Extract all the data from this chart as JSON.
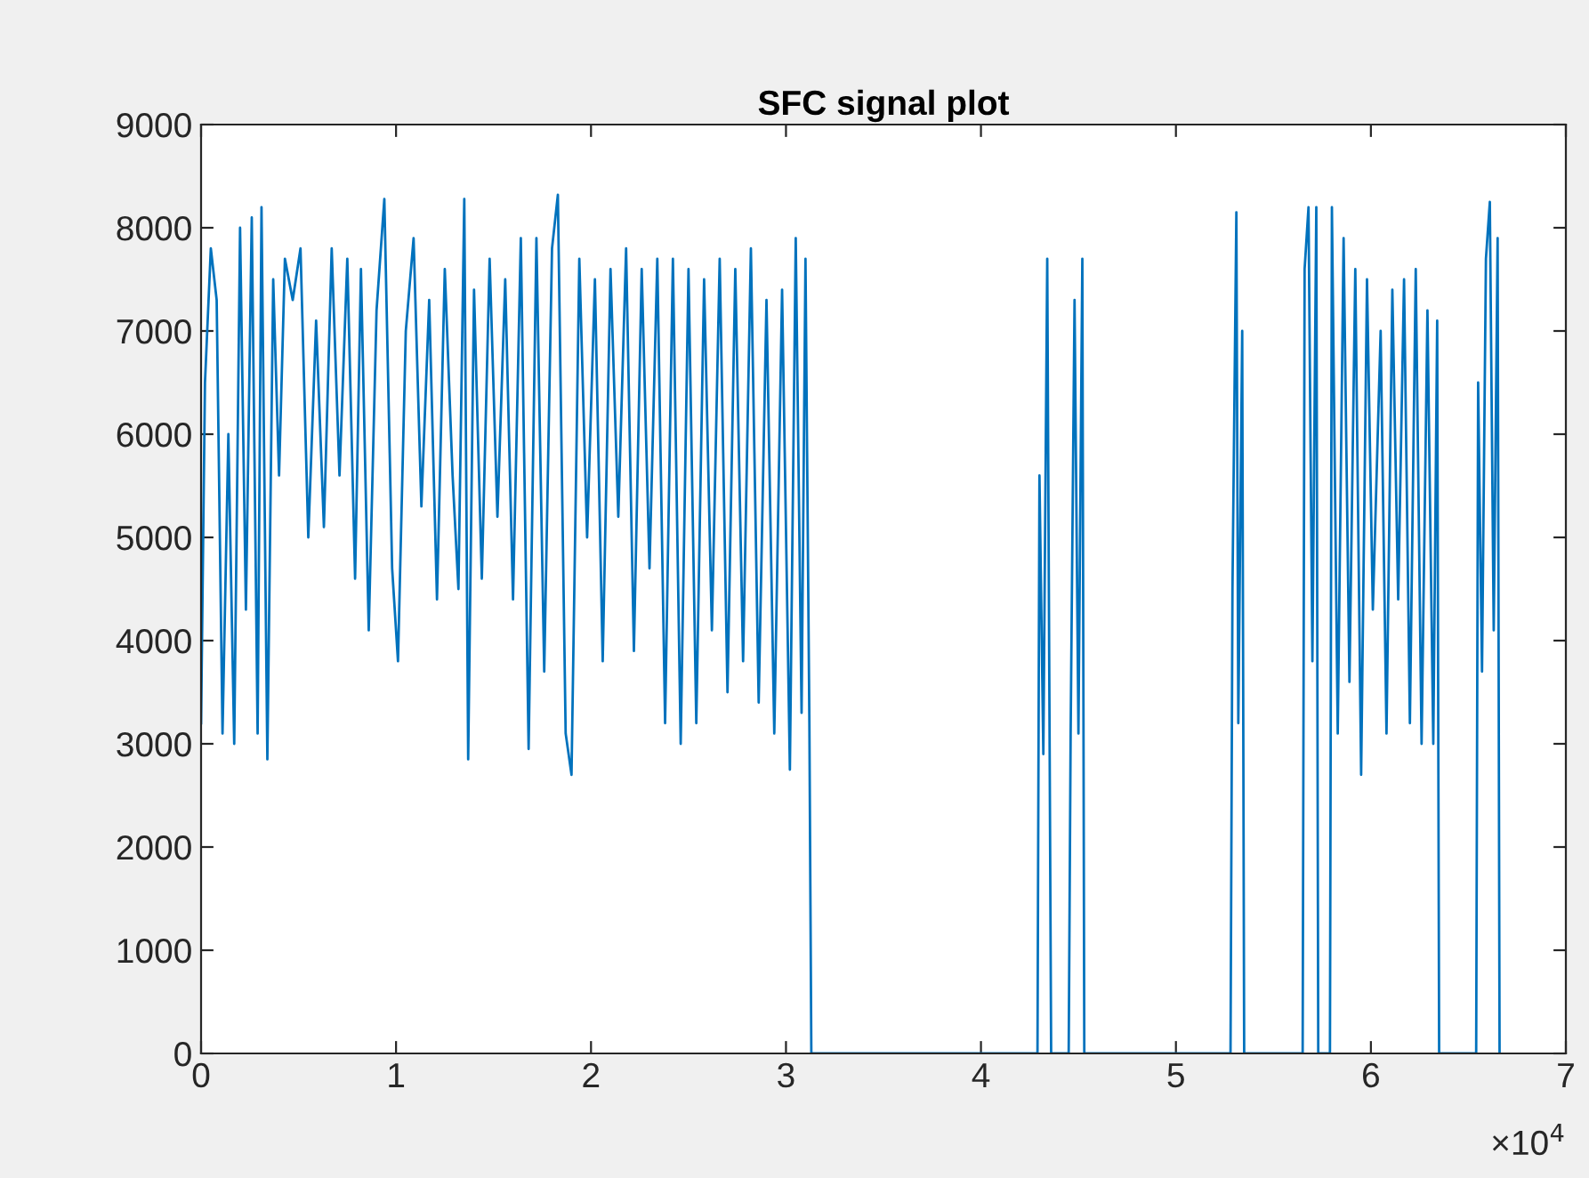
{
  "chart_data": {
    "type": "line",
    "title": "SFC signal plot",
    "series": [
      {
        "color": "#0072bd",
        "x": [
          0,
          0.02,
          0.05,
          0.08,
          0.11,
          0.14,
          0.17,
          0.2,
          0.23,
          0.26,
          0.29,
          0.31,
          0.34,
          0.37,
          0.4,
          0.43,
          0.47,
          0.51,
          0.55,
          0.59,
          0.63,
          0.67,
          0.71,
          0.75,
          0.79,
          0.82,
          0.86,
          0.9,
          0.94,
          0.98,
          1.01,
          1.05,
          1.09,
          1.13,
          1.17,
          1.21,
          1.25,
          1.29,
          1.32,
          1.35,
          1.37,
          1.4,
          1.44,
          1.48,
          1.52,
          1.56,
          1.6,
          1.64,
          1.68,
          1.72,
          1.76,
          1.8,
          1.83,
          1.87,
          1.9,
          1.94,
          1.98,
          2.02,
          2.06,
          2.1,
          2.14,
          2.18,
          2.22,
          2.26,
          2.3,
          2.34,
          2.38,
          2.42,
          2.46,
          2.5,
          2.54,
          2.58,
          2.62,
          2.66,
          2.7,
          2.74,
          2.78,
          2.82,
          2.86,
          2.9,
          2.94,
          2.98,
          3.02,
          3.05,
          3.08,
          3.1,
          3.12,
          3.13,
          4.29,
          4.3,
          4.32,
          4.34,
          4.36,
          4.45,
          4.46,
          4.48,
          4.5,
          4.52,
          4.53,
          5.28,
          5.29,
          5.31,
          5.32,
          5.34,
          5.35,
          5.65,
          5.66,
          5.68,
          5.7,
          5.72,
          5.73,
          5.79,
          5.8,
          5.83,
          5.86,
          5.89,
          5.92,
          5.95,
          5.98,
          6.01,
          6.05,
          6.08,
          6.11,
          6.14,
          6.17,
          6.2,
          6.23,
          6.26,
          6.29,
          6.32,
          6.34,
          6.35,
          6.54,
          6.55,
          6.57,
          6.59,
          6.61,
          6.63,
          6.65,
          6.66
        ],
        "values": [
          3200,
          6500,
          7800,
          7300,
          3100,
          6000,
          3000,
          8000,
          4300,
          8100,
          3100,
          8200,
          2850,
          7500,
          5600,
          7700,
          7300,
          7800,
          5000,
          7100,
          5100,
          7800,
          5600,
          7700,
          4600,
          7600,
          4100,
          7200,
          8280,
          4700,
          3800,
          7000,
          7900,
          5300,
          7300,
          4400,
          7600,
          5600,
          4500,
          8280,
          2850,
          7400,
          4600,
          7700,
          5200,
          7500,
          4400,
          7900,
          2950,
          7900,
          3700,
          7800,
          8320,
          3100,
          2700,
          7700,
          5000,
          7500,
          3800,
          7600,
          5200,
          7800,
          3900,
          7600,
          4700,
          7700,
          3200,
          7700,
          3000,
          7600,
          3200,
          7500,
          4100,
          7700,
          3500,
          7600,
          3800,
          7800,
          3400,
          7300,
          3100,
          7400,
          2750,
          7900,
          3300,
          7700,
          3200,
          0,
          0,
          5600,
          2900,
          7700,
          0,
          0,
          3100,
          7300,
          3100,
          7700,
          0,
          0,
          4500,
          8150,
          3200,
          7000,
          0,
          0,
          7600,
          8200,
          3800,
          8200,
          0,
          0,
          8200,
          3100,
          7900,
          3600,
          7600,
          2700,
          7500,
          4300,
          7000,
          3100,
          7400,
          4400,
          7500,
          3200,
          7600,
          3000,
          7200,
          3000,
          7100,
          0,
          0,
          6500,
          3700,
          7700,
          8250,
          4100,
          7900,
          0
        ]
      }
    ],
    "xlim": [
      0,
      7
    ],
    "xticks": [
      0,
      1,
      2,
      3,
      4,
      5,
      6,
      7
    ],
    "ylim": [
      0,
      9000
    ],
    "yticks": [
      0,
      1000,
      2000,
      3000,
      4000,
      5000,
      6000,
      7000,
      8000,
      9000
    ],
    "annotations": [
      "×10$^{4}$"
    ]
  }
}
